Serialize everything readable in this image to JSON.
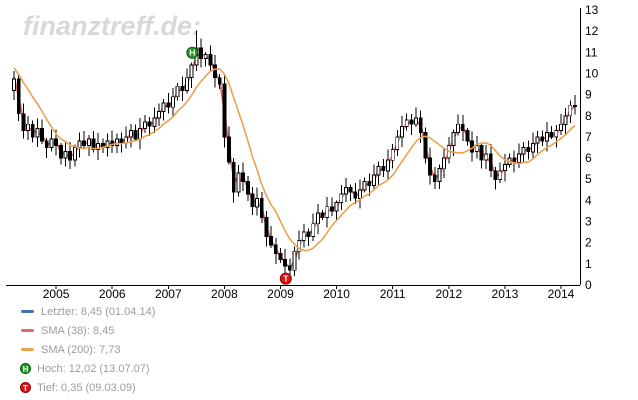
{
  "watermark": "finanztreff.de:",
  "legend": {
    "items": [
      {
        "kind": "line",
        "color": "#4472a8",
        "label": "Letzter: 8,45 (01.04.14)"
      },
      {
        "kind": "line",
        "color": "#e06b6b",
        "label": "SMA (38): 8,45"
      },
      {
        "kind": "line",
        "color": "#eba24f",
        "label": "SMA (200): 7,73"
      },
      {
        "kind": "marker",
        "glyph": "H",
        "color": "#1d9b1d",
        "border": "#0a5c0a",
        "label": "Hoch: 12,02 (13.07.07)"
      },
      {
        "kind": "marker",
        "glyph": "T",
        "color": "#e01212",
        "border": "#8d0000",
        "label": "Tief: 0,35 (09.03.09)"
      }
    ]
  },
  "chart_data": {
    "type": "candlestick",
    "interval": "monthly",
    "start": "2004-04",
    "end": "2014-04",
    "title": "",
    "grid": false,
    "legend_position": "bottom-left",
    "y_range": [
      0,
      13
    ],
    "y_ticks": [
      "0",
      "1",
      "2",
      "3",
      "4",
      "5",
      "6",
      "7",
      "8",
      "9",
      "10",
      "11",
      "12",
      "13"
    ],
    "x_ticks": [
      "2005",
      "2006",
      "2007",
      "2008",
      "2009",
      "2010",
      "2011",
      "2012",
      "2013",
      "2014"
    ],
    "first_open": 9.2,
    "closes": [
      9.75,
      8.1,
      7.3,
      7.6,
      7.0,
      7.4,
      6.8,
      6.5,
      6.9,
      6.6,
      6.0,
      6.3,
      5.9,
      6.5,
      6.8,
      6.6,
      6.9,
      6.4,
      6.7,
      6.5,
      6.8,
      6.6,
      6.9,
      6.7,
      7.0,
      7.3,
      6.9,
      7.4,
      7.7,
      7.5,
      7.9,
      8.2,
      8.6,
      8.4,
      8.9,
      9.4,
      9.2,
      9.8,
      10.4,
      11.2,
      10.7,
      10.9,
      10.4,
      9.8,
      9.5,
      7.0,
      5.8,
      4.4,
      5.3,
      4.9,
      4.3,
      3.7,
      4.1,
      3.2,
      2.3,
      1.9,
      1.5,
      1.2,
      0.9,
      0.7,
      1.6,
      2.1,
      2.5,
      2.3,
      2.9,
      3.4,
      3.2,
      3.7,
      3.5,
      3.9,
      4.3,
      4.6,
      4.4,
      4.1,
      4.5,
      4.9,
      4.7,
      5.2,
      5.6,
      5.4,
      5.9,
      6.4,
      7.0,
      7.5,
      7.8,
      7.6,
      7.9,
      7.2,
      6.0,
      5.2,
      4.9,
      5.5,
      6.0,
      6.6,
      7.2,
      7.6,
      7.3,
      6.8,
      6.3,
      6.6,
      5.9,
      6.2,
      5.4,
      5.0,
      5.4,
      5.7,
      6.0,
      5.8,
      6.2,
      6.5,
      6.3,
      6.7,
      7.0,
      6.8,
      7.2,
      7.0,
      7.3,
      7.6,
      8.0,
      8.5,
      8.45
    ],
    "pre_closes": [
      10.9,
      10.7,
      10.5,
      10.3,
      10.2,
      10.1,
      10.0,
      9.9
    ],
    "high_override": {
      "39": 12.02
    },
    "low_override": {
      "59": 0.35
    },
    "last_price": {
      "label": "Letzter",
      "value": "8,45",
      "date": "01.04.14",
      "color": "#4472a8"
    },
    "overlays": [
      {
        "name": "SMA (38)",
        "window_days": 38,
        "window_months": 2,
        "color": "#e06b6b",
        "last_value": "8,45"
      },
      {
        "name": "SMA (200)",
        "window_days": 200,
        "window_months": 9,
        "color": "#eba24f",
        "last_value": "7,73"
      }
    ],
    "markers": [
      {
        "glyph": "H",
        "name": "Hoch",
        "index": 39,
        "value": 12.02,
        "date": "13.07.07",
        "fill": "#1d9b1d",
        "stroke": "#0a5c0a"
      },
      {
        "glyph": "T",
        "name": "Tief",
        "index": 59,
        "value": 0.35,
        "date": "09.03.09",
        "fill": "#e01212",
        "stroke": "#8d0000"
      }
    ],
    "colors": {
      "candle_up_fill": "#ffffff",
      "candle_down_fill": "#000000",
      "candle_stroke": "#000000",
      "axis": "#000000",
      "axis_text": "#000000"
    }
  }
}
